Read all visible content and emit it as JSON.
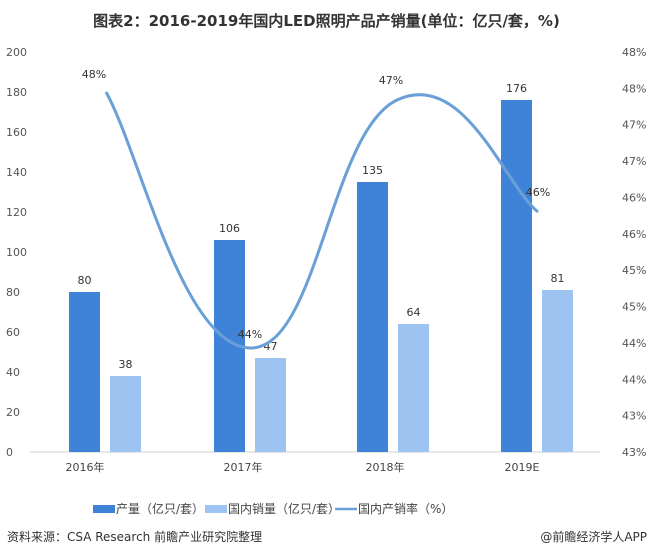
{
  "chart_data": {
    "type": "bar",
    "title": "图表2：2016-2019年国内LED照明产品产销量(单位：亿只/套，%)",
    "categories": [
      "2016年",
      "2017年",
      "2018年",
      "2019E"
    ],
    "series": [
      {
        "name": "产量（亿只/套）",
        "type": "bar",
        "axis": "left",
        "color": "#3f83d8",
        "values": [
          80,
          106,
          135,
          176
        ],
        "labels": [
          "80",
          "106",
          "135",
          "176"
        ]
      },
      {
        "name": "国内销量（亿只/套）",
        "type": "bar",
        "axis": "left",
        "color": "#9dc3f0",
        "values": [
          38,
          47,
          64,
          81
        ],
        "labels": [
          "38",
          "47",
          "64",
          "81"
        ]
      },
      {
        "name": "国内产销率（%）",
        "type": "line",
        "smooth": true,
        "axis": "right",
        "color": "#6a9fd8",
        "values": [
          47.5,
          44.3,
          47.4,
          46.0
        ],
        "labels": [
          "48%",
          "44%",
          "47%",
          "46%"
        ]
      }
    ],
    "y_left": {
      "range": [
        0,
        200
      ],
      "ticks": [
        "0",
        "20",
        "40",
        "60",
        "80",
        "100",
        "120",
        "140",
        "160",
        "180",
        "200"
      ]
    },
    "y_right": {
      "range": [
        43,
        48
      ],
      "ticks": [
        "43%",
        "43%",
        "44%",
        "44%",
        "45%",
        "45%",
        "46%",
        "46%",
        "47%",
        "47%",
        "48%",
        "48%"
      ]
    },
    "grid": false,
    "legend": "bottom"
  },
  "source": "资料来源：CSA Research 前瞻产业研究院整理",
  "credit": "@前瞻经济学人APP"
}
